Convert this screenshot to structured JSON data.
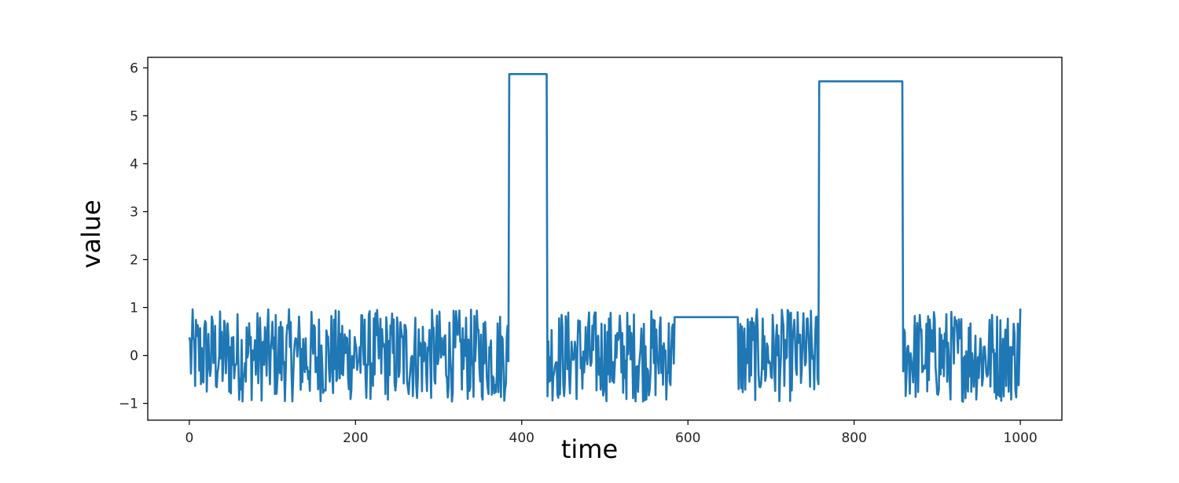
{
  "chart_data": {
    "type": "line",
    "xlabel": "time",
    "ylabel": "value",
    "xlim": [
      -50,
      1050
    ],
    "ylim": [
      -1.35,
      6.22
    ],
    "xticks": [
      0,
      200,
      400,
      600,
      800,
      1000
    ],
    "yticks": [
      -1,
      0,
      1,
      2,
      3,
      4,
      5,
      6
    ],
    "xtick_labels": [
      "0",
      "200",
      "400",
      "600",
      "800",
      "1000"
    ],
    "ytick_labels": [
      "−1",
      "0",
      "1",
      "2",
      "3",
      "4",
      "5",
      "6"
    ],
    "grid": false,
    "legend": "none",
    "line_color": "#1f77b4",
    "series": [
      {
        "segments": [
          {
            "kind": "noise",
            "x_range": [
              0,
              384
            ],
            "y_range": [
              -0.97,
              0.97
            ],
            "start": 0.38,
            "end": -0.12
          },
          {
            "kind": "flat",
            "x_range": [
              385,
              430
            ],
            "value": 5.87
          },
          {
            "kind": "noise",
            "x_range": [
              431,
              583
            ],
            "y_range": [
              -0.97,
              0.97
            ],
            "start": -0.85,
            "end": -0.17
          },
          {
            "kind": "flat",
            "x_range": [
              584,
              660
            ],
            "value": 0.8
          },
          {
            "kind": "noise",
            "x_range": [
              661,
              757
            ],
            "y_range": [
              -0.97,
              0.97
            ],
            "start": -0.7,
            "end": -0.6
          },
          {
            "kind": "flat",
            "x_range": [
              758,
              858
            ],
            "value": 5.72
          },
          {
            "kind": "noise",
            "x_range": [
              859,
              1000
            ],
            "y_range": [
              -0.97,
              0.97
            ],
            "start": -0.33,
            "end": 0.98
          }
        ]
      }
    ]
  }
}
